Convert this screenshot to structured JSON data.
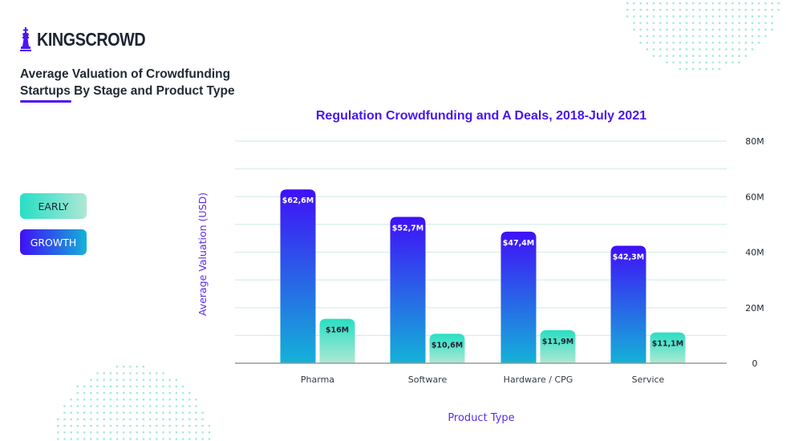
{
  "brand": {
    "name": "KINGSCROWD",
    "icon": "chess-king-icon",
    "accent_color": "#4b15f6"
  },
  "header": {
    "subtitle_line1": "Average Valuation of Crowdfunding",
    "subtitle_line2": "Startups By Stage and Product Type"
  },
  "legend": {
    "items": [
      {
        "label": "EARLY",
        "gradient": [
          "#27dfc4",
          "#aee8d3"
        ],
        "text_color": "#1e2433"
      },
      {
        "label": "GROWTH",
        "gradient": [
          "#3f10f8",
          "#14b2d8"
        ],
        "text_color": "#ffffff"
      }
    ]
  },
  "chart_data": {
    "type": "bar",
    "title": "Regulation Crowdfunding and A Deals, 2018-July 2021",
    "xlabel": "Product Type",
    "ylabel": "Average Valuation (USD)",
    "categories": [
      "Pharma",
      "Software",
      "Hardware / CPG",
      "Service"
    ],
    "series": [
      {
        "name": "GROWTH",
        "values": [
          62.6,
          52.7,
          47.4,
          42.3
        ],
        "labels": [
          "$62,6M",
          "$52,7M",
          "$47,4M",
          "$42,3M"
        ],
        "colors": [
          "#3f10f8",
          "#14b2d8"
        ]
      },
      {
        "name": "EARLY",
        "values": [
          16,
          10.6,
          11.9,
          11.1
        ],
        "labels": [
          "$16M",
          "$10,6M",
          "$11,9M",
          "$11,1M"
        ],
        "colors": [
          "#27dfc4",
          "#aee8d3"
        ]
      }
    ],
    "ylim": [
      0,
      80
    ],
    "yticks": [
      0,
      20,
      40,
      60,
      80
    ],
    "ytick_labels": [
      "0",
      "20M",
      "40M",
      "60M",
      "80M"
    ],
    "grid_step": 10,
    "grid": true,
    "y_axis_side": "right",
    "legend_position": "left",
    "units": "M USD",
    "colors": {
      "title": "#4a17ef",
      "axis_label": "#5b2bf0",
      "grid": "#d4f0ea",
      "baseline": "#9a9a9a",
      "tick": "#232a36"
    }
  }
}
